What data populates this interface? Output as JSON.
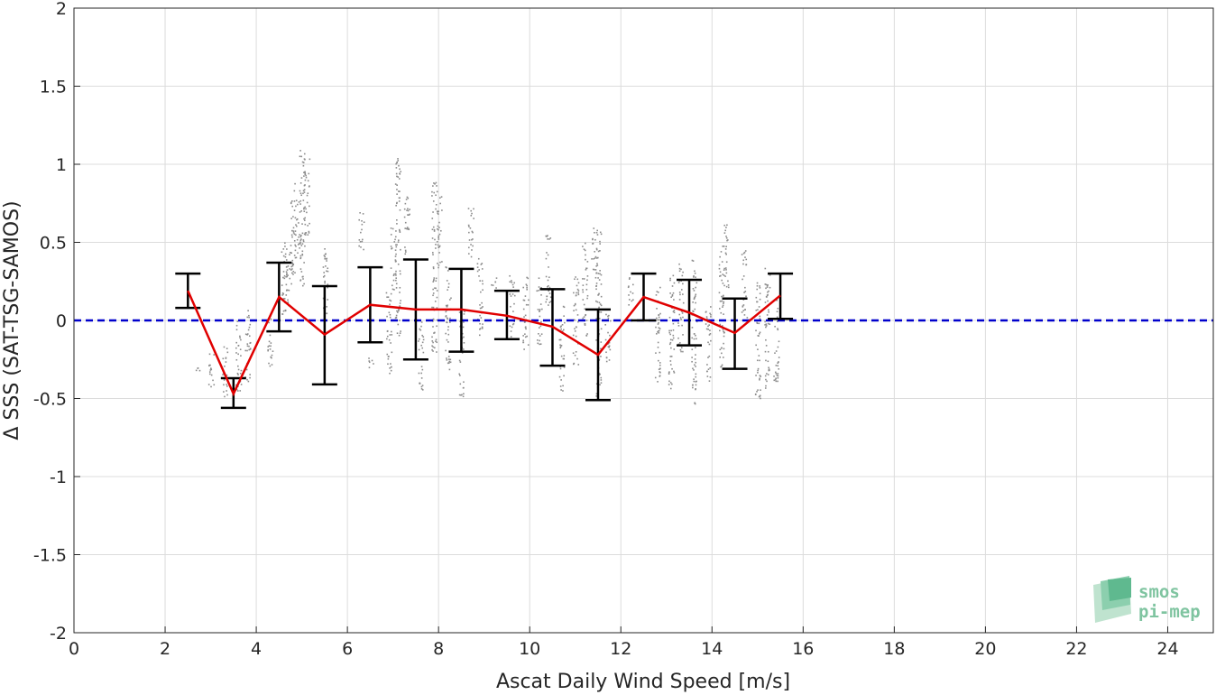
{
  "chart_data": {
    "type": "scatter",
    "xlabel": "Ascat Daily Wind Speed [m/s]",
    "ylabel": "Δ SSS (SAT-TSG-SAMOS)",
    "xlim": [
      0,
      25
    ],
    "ylim": [
      -2,
      2
    ],
    "x_ticks": [
      "0",
      "2",
      "4",
      "6",
      "8",
      "10",
      "12",
      "14",
      "16",
      "18",
      "20",
      "22",
      "24"
    ],
    "y_ticks": [
      "2",
      "1.5",
      "1",
      "0.5",
      "0",
      "-0.5",
      "-1",
      "-1.5",
      "-2"
    ],
    "grid": true,
    "reference_line": {
      "y": 0,
      "style": "dashed",
      "color": "#0000cc"
    },
    "series": [
      {
        "type": "line",
        "color": "#e00000",
        "x": [
          2.5,
          3.5,
          4.5,
          5.5,
          6.5,
          7.5,
          8.5,
          9.5,
          10.5,
          11.5,
          12.5,
          13.5,
          14.5,
          15.5
        ],
        "y": [
          0.19,
          -0.47,
          0.15,
          -0.09,
          0.1,
          0.07,
          0.07,
          0.03,
          -0.04,
          -0.22,
          0.15,
          0.05,
          -0.08,
          0.16
        ]
      },
      {
        "type": "errorbar",
        "color": "#000000",
        "x": [
          2.5,
          3.5,
          4.5,
          5.5,
          6.5,
          7.5,
          8.5,
          9.5,
          10.5,
          11.5,
          12.5,
          13.5,
          14.5,
          15.5
        ],
        "low": [
          0.08,
          -0.56,
          -0.07,
          -0.41,
          -0.14,
          -0.25,
          -0.2,
          -0.12,
          -0.29,
          -0.51,
          0.0,
          -0.16,
          -0.31,
          0.01
        ],
        "high": [
          0.3,
          -0.37,
          0.37,
          0.22,
          0.34,
          0.39,
          0.33,
          0.19,
          0.2,
          0.07,
          0.3,
          0.26,
          0.14,
          0.3
        ]
      },
      {
        "type": "scatter-columns",
        "color": "#8c8c8c",
        "columns": [
          [
            2.7,
            -0.32,
            -0.28
          ],
          [
            3.0,
            -0.45,
            -0.2
          ],
          [
            3.3,
            -0.5,
            -0.15
          ],
          [
            3.6,
            -0.45,
            0.05
          ],
          [
            3.8,
            -0.4,
            0.08
          ],
          [
            4.3,
            -0.3,
            0.05
          ],
          [
            4.6,
            0.0,
            0.52
          ],
          [
            4.7,
            0.1,
            0.5
          ],
          [
            4.8,
            0.3,
            0.9
          ],
          [
            4.9,
            0.4,
            0.8
          ],
          [
            5.0,
            0.2,
            1.1
          ],
          [
            5.1,
            0.5,
            1.05
          ],
          [
            5.5,
            0.0,
            0.5
          ],
          [
            6.3,
            0.45,
            0.7
          ],
          [
            6.5,
            -0.3,
            -0.2
          ],
          [
            6.9,
            -0.35,
            0.2
          ],
          [
            7.0,
            0.2,
            0.6
          ],
          [
            7.1,
            -0.1,
            1.05
          ],
          [
            7.3,
            0.4,
            0.8
          ],
          [
            7.6,
            -0.45,
            0.0
          ],
          [
            7.9,
            -0.2,
            0.9
          ],
          [
            8.0,
            0.3,
            0.8
          ],
          [
            8.2,
            -0.35,
            0.35
          ],
          [
            8.5,
            -0.5,
            0.1
          ],
          [
            8.7,
            0.4,
            0.75
          ],
          [
            8.9,
            -0.1,
            0.4
          ],
          [
            9.2,
            0.2,
            0.3
          ],
          [
            9.6,
            -0.1,
            0.32
          ],
          [
            9.9,
            -0.2,
            0.3
          ],
          [
            10.2,
            -0.15,
            0.3
          ],
          [
            10.4,
            0.1,
            0.55
          ],
          [
            10.7,
            -0.45,
            0.1
          ],
          [
            11.0,
            -0.3,
            0.3
          ],
          [
            11.2,
            -0.1,
            0.5
          ],
          [
            11.4,
            0.2,
            0.6
          ],
          [
            11.5,
            -0.5,
            0.62
          ],
          [
            11.7,
            -0.3,
            0.05
          ],
          [
            12.2,
            0.1,
            0.3
          ],
          [
            12.8,
            -0.4,
            0.25
          ],
          [
            13.1,
            -0.45,
            0.3
          ],
          [
            13.3,
            -0.2,
            0.4
          ],
          [
            13.6,
            -0.56,
            0.42
          ],
          [
            13.9,
            -0.4,
            0.1
          ],
          [
            14.2,
            -0.3,
            0.5
          ],
          [
            14.3,
            0.2,
            0.64
          ],
          [
            14.7,
            0.0,
            0.45
          ],
          [
            15.0,
            -0.5,
            0.25
          ],
          [
            15.2,
            -0.45,
            0.35
          ],
          [
            15.4,
            -0.4,
            0.15
          ]
        ]
      }
    ]
  },
  "logo": {
    "line1": "smos",
    "line2": "pi-mep"
  }
}
